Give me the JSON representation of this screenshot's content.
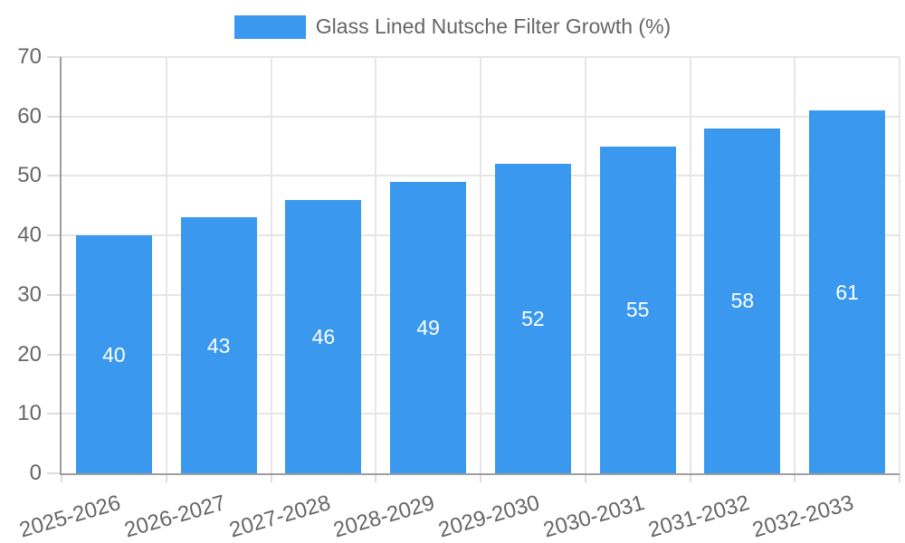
{
  "chart_data": {
    "type": "bar",
    "title": "",
    "legend": {
      "label": "Glass Lined Nutsche Filter Growth (%)",
      "position": "top"
    },
    "categories": [
      "2025-2026",
      "2026-2027",
      "2027-2028",
      "2028-2029",
      "2029-2030",
      "2030-2031",
      "2031-2032",
      "2032-2033"
    ],
    "series": [
      {
        "name": "Glass Lined Nutsche Filter Growth (%)",
        "values": [
          40,
          43,
          46,
          49,
          52,
          55,
          58,
          61
        ]
      }
    ],
    "value_labels_shown": true,
    "xlabel": "",
    "ylabel": "",
    "ylim": [
      0,
      70
    ],
    "ytick_step": 10,
    "yticks": [
      0,
      10,
      20,
      30,
      40,
      50,
      60,
      70
    ],
    "grid": true,
    "colors": {
      "bar": "#3a99ee",
      "value_label": "#ffffff",
      "gridline": "#e6e6e6",
      "tick_mark": "#dcdcdc",
      "axis_line": "#9e9e9e",
      "tick_label": "#666666",
      "legend_text": "#666666",
      "background": "#ffffff"
    }
  }
}
